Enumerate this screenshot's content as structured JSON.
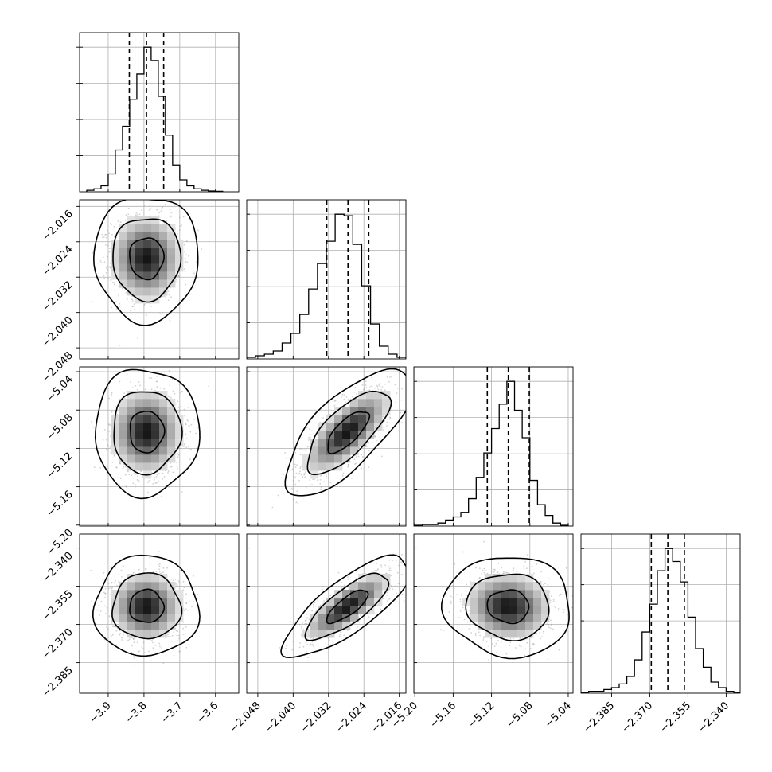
{
  "chart_data": {
    "type": "corner",
    "title": "",
    "grid": true,
    "parameters": [
      {
        "range": [
          -3.98,
          -3.535
        ],
        "ticks": [
          -3.9,
          -3.8,
          -3.7,
          -3.6
        ],
        "tick_labels": [
          "−3.9",
          "−3.8",
          "−3.7",
          "−3.6"
        ],
        "quantiles": [
          -3.841,
          -3.793,
          -3.745
        ],
        "hist_x": [
          -3.95,
          -3.93,
          -3.91,
          -3.89,
          -3.87,
          -3.85,
          -3.83,
          -3.81,
          -3.79,
          -3.77,
          -3.75,
          -3.73,
          -3.71,
          -3.69,
          -3.67,
          -3.65,
          -3.63,
          -3.61,
          -3.59
        ],
        "hist_counts": [
          1,
          2,
          4,
          12,
          28,
          44,
          62,
          79,
          97,
          88,
          64,
          38,
          18,
          8,
          4,
          2,
          1,
          0.5,
          0.3
        ]
      },
      {
        "range": [
          -2.0505,
          -2.0145
        ],
        "ticks": [
          -2.048,
          -2.04,
          -2.032,
          -2.024,
          -2.016
        ],
        "tick_labels": [
          "−2.048",
          "−2.040",
          "−2.032",
          "−2.024",
          "−2.016"
        ],
        "quantiles": [
          -2.0324,
          -2.0276,
          -2.0229
        ],
        "hist_x": [
          -2.0495,
          -2.0475,
          -2.0455,
          -2.0435,
          -2.0415,
          -2.0395,
          -2.0375,
          -2.0355,
          -2.0335,
          -2.0315,
          -2.0295,
          -2.0275,
          -2.0255,
          -2.0235,
          -2.0215,
          -2.0195,
          -2.0175,
          -2.0155
        ],
        "hist_counts": [
          1,
          2,
          3,
          5,
          10,
          16,
          28,
          44,
          60,
          74,
          91,
          90,
          72,
          46,
          22,
          8,
          3,
          1
        ]
      },
      {
        "range": [
          -5.201,
          -5.035
        ],
        "ticks": [
          -5.2,
          -5.16,
          -5.12,
          -5.08,
          -5.04
        ],
        "tick_labels": [
          "−5.20",
          "−5.16",
          "−5.12",
          "−5.08",
          "−5.04"
        ],
        "quantiles": [
          -5.1244,
          -5.1025,
          -5.0806
        ],
        "hist_x": [
          -5.196,
          -5.188,
          -5.18,
          -5.172,
          -5.164,
          -5.156,
          -5.148,
          -5.14,
          -5.132,
          -5.124,
          -5.116,
          -5.108,
          -5.1,
          -5.092,
          -5.084,
          -5.076,
          -5.068,
          -5.06,
          -5.052,
          -5.044
        ],
        "hist_counts": [
          0.5,
          1,
          1,
          2,
          4,
          6,
          9,
          18,
          32,
          48,
          64,
          80,
          95,
          76,
          58,
          30,
          14,
          7,
          2,
          0.5
        ]
      },
      {
        "range": [
          -2.397,
          -2.3345
        ],
        "ticks": [
          -2.385,
          -2.37,
          -2.355,
          -2.34
        ],
        "tick_labels": [
          "−2.385",
          "−2.370",
          "−2.355",
          "−2.340"
        ],
        "quantiles": [
          -2.3694,
          -2.3629,
          -2.3564
        ],
        "hist_x": [
          -2.3955,
          -2.3925,
          -2.3895,
          -2.3865,
          -2.3835,
          -2.3805,
          -2.3775,
          -2.3745,
          -2.3715,
          -2.3685,
          -2.3655,
          -2.3625,
          -2.3595,
          -2.3565,
          -2.3535,
          -2.3505,
          -2.3475,
          -2.3445,
          -2.3415,
          -2.3385,
          -2.3355
        ],
        "hist_counts": [
          0.5,
          1,
          1,
          2,
          3,
          5,
          9,
          18,
          33,
          48,
          66,
          78,
          71,
          60,
          41,
          24,
          14,
          6,
          3,
          1,
          0.5
        ]
      }
    ],
    "joint": [
      {
        "x_param": 0,
        "y_param": 1,
        "mean": [
          -3.793,
          -2.0277
        ],
        "sd": [
          0.048,
          0.0047
        ],
        "correlation": 0.0
      },
      {
        "x_param": 0,
        "y_param": 2,
        "mean": [
          -3.793,
          -5.1025
        ],
        "sd": [
          0.048,
          0.0218
        ],
        "correlation": 0.0
      },
      {
        "x_param": 1,
        "y_param": 2,
        "mean": [
          -2.0277,
          -5.1025
        ],
        "sd": [
          0.0047,
          0.0218
        ],
        "correlation": 0.72
      },
      {
        "x_param": 0,
        "y_param": 3,
        "mean": [
          -3.793,
          -2.3629
        ],
        "sd": [
          0.048,
          0.0065
        ],
        "correlation": 0.0
      },
      {
        "x_param": 1,
        "y_param": 3,
        "mean": [
          -2.0277,
          -2.3629
        ],
        "sd": [
          0.0047,
          0.0065
        ],
        "correlation": 0.78
      },
      {
        "x_param": 2,
        "y_param": 3,
        "mean": [
          -5.1025,
          -2.3629
        ],
        "sd": [
          0.0218,
          0.0065
        ],
        "correlation": -0.05
      }
    ]
  }
}
